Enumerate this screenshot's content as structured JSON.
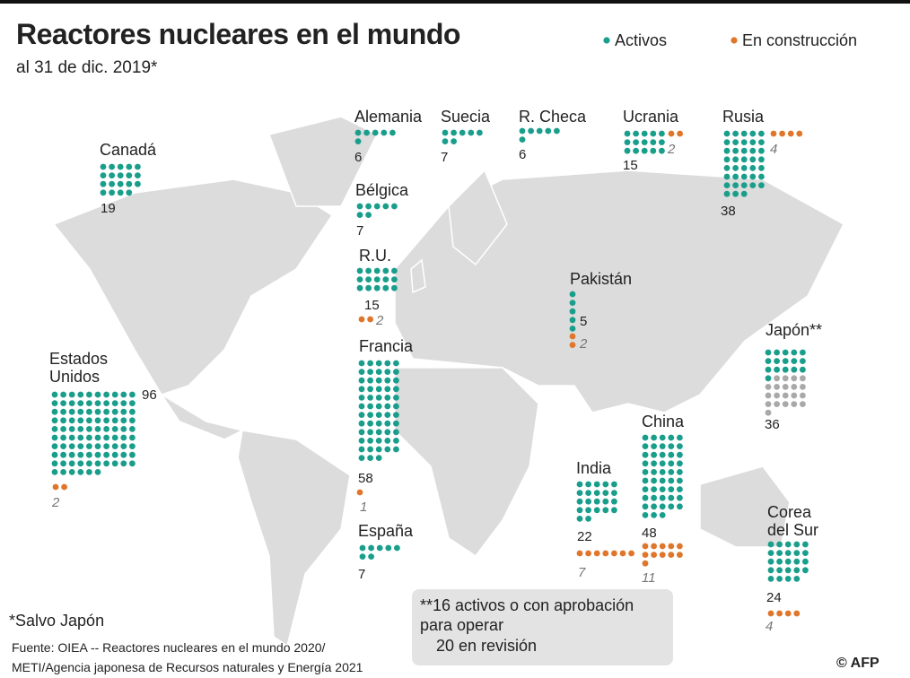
{
  "title": "Reactores nucleares en el mundo",
  "subtitle": "al 31 de dic. 2019*",
  "legend": {
    "active": "Activos",
    "construction": "En construcción"
  },
  "countries": [
    {
      "name": "Canadá",
      "active": 19
    },
    {
      "name": "Estados Unidos",
      "active": 96,
      "construction": 2
    },
    {
      "name": "Alemania",
      "active": 6
    },
    {
      "name": "Suecia",
      "active": 7
    },
    {
      "name": "R. Checa",
      "active": 6
    },
    {
      "name": "Ucrania",
      "active": 15,
      "construction": 2
    },
    {
      "name": "Rusia",
      "active": 38,
      "construction": 4
    },
    {
      "name": "Bélgica",
      "active": 7
    },
    {
      "name": "R.U.",
      "active": 15,
      "construction": 2
    },
    {
      "name": "Francia",
      "active": 58,
      "construction": 1
    },
    {
      "name": "España",
      "active": 7
    },
    {
      "name": "Pakistán",
      "active": 5,
      "construction": 2
    },
    {
      "name": "Japón**",
      "active": 36,
      "approved": 16
    },
    {
      "name": "China",
      "active": 48,
      "construction": 11
    },
    {
      "name": "India",
      "active": 22,
      "construction": 7
    },
    {
      "name": "Corea del Sur",
      "active": 24,
      "construction": 4
    }
  ],
  "footnote": "*Salvo Japón",
  "note": [
    "**16 activos o con aprobación",
    "para operar",
    "20 en revisión"
  ],
  "source": [
    "Fuente: OIEA -- Reactores nucleares en el mundo 2020/",
    "METI/Agencia japonesa de Recursos naturales y Energía 2021"
  ],
  "credit": "© AFP"
}
